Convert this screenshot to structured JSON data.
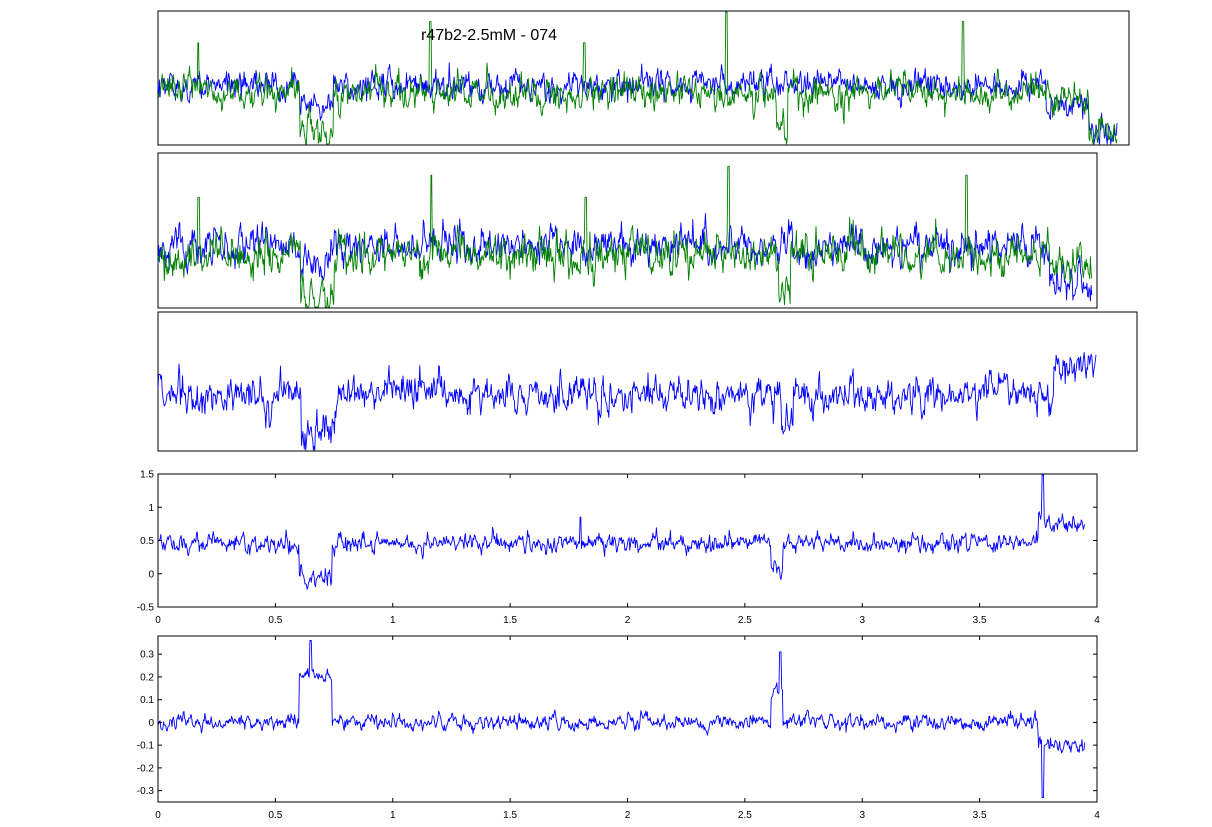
{
  "figure": {
    "title": "r47b2-2.5mM - 074"
  },
  "colors": {
    "blue_trace": "#0000ff",
    "green_trace": "#007f00",
    "axes": "#000000",
    "background": "#ffffff"
  },
  "chart_data": [
    {
      "type": "line",
      "panel": 1,
      "title": "r47b2-2.5mM - 074",
      "axes_visible": false,
      "x_range": [
        0,
        4.1
      ],
      "y_range": [
        -0.45,
        1.45
      ],
      "series": [
        {
          "color": "#0000ff",
          "baseline_level": 0.4,
          "noise_std": 0.09,
          "x_end": 4.05,
          "segments": [
            {
              "x_start": 0.0,
              "x_end": 0.6,
              "level": 0.4
            },
            {
              "x_start": 0.6,
              "x_end": 0.74,
              "level": 0.15
            },
            {
              "x_start": 0.74,
              "x_end": 3.75,
              "level": 0.4
            },
            {
              "x_start": 3.75,
              "x_end": 3.93,
              "level": 0.1
            },
            {
              "x_start": 3.93,
              "x_end": 4.05,
              "level": -0.3
            }
          ]
        },
        {
          "color": "#007f00",
          "baseline_level": 0.3,
          "noise_std": 0.1,
          "x_end": 4.05,
          "segments": [
            {
              "x_start": 0.0,
              "x_end": 0.6,
              "level": 0.3
            },
            {
              "x_start": 0.6,
              "x_end": 0.74,
              "level": -0.3
            },
            {
              "x_start": 0.74,
              "x_end": 2.61,
              "level": 0.3
            },
            {
              "x_start": 2.61,
              "x_end": 2.66,
              "level": -0.2
            },
            {
              "x_start": 2.66,
              "x_end": 3.75,
              "level": 0.3
            },
            {
              "x_start": 3.75,
              "x_end": 3.93,
              "level": 0.25
            },
            {
              "x_start": 3.93,
              "x_end": 4.05,
              "level": -0.3
            }
          ],
          "spikes": [
            {
              "x": 0.17,
              "y": 1.0
            },
            {
              "x": 1.15,
              "y": 1.3
            },
            {
              "x": 1.8,
              "y": 1.0
            },
            {
              "x": 2.4,
              "y": 1.45
            },
            {
              "x": 3.4,
              "y": 1.3
            }
          ]
        }
      ]
    },
    {
      "type": "line",
      "panel": 2,
      "axes_visible": false,
      "x_range": [
        0,
        3.95
      ],
      "y_range": [
        -0.3,
        1.45
      ],
      "series": [
        {
          "color": "#0000ff",
          "baseline_level": 0.4,
          "noise_std": 0.09,
          "x_end": 3.93,
          "segments": [
            {
              "x_start": 0.0,
              "x_end": 0.6,
              "level": 0.4
            },
            {
              "x_start": 0.6,
              "x_end": 0.74,
              "level": 0.15
            },
            {
              "x_start": 0.74,
              "x_end": 3.75,
              "level": 0.4
            },
            {
              "x_start": 3.75,
              "x_end": 3.93,
              "level": -0.05
            }
          ]
        },
        {
          "color": "#007f00",
          "baseline_level": 0.3,
          "noise_std": 0.1,
          "x_end": 3.93,
          "segments": [
            {
              "x_start": 0.0,
              "x_end": 0.6,
              "level": 0.3
            },
            {
              "x_start": 0.6,
              "x_end": 0.74,
              "level": -0.2
            },
            {
              "x_start": 0.74,
              "x_end": 2.61,
              "level": 0.3
            },
            {
              "x_start": 2.61,
              "x_end": 2.66,
              "level": -0.15
            },
            {
              "x_start": 2.66,
              "x_end": 3.75,
              "level": 0.3
            },
            {
              "x_start": 3.75,
              "x_end": 3.93,
              "level": 0.2
            }
          ],
          "spikes": [
            {
              "x": 0.17,
              "y": 0.95
            },
            {
              "x": 1.15,
              "y": 1.2
            },
            {
              "x": 1.8,
              "y": 0.95
            },
            {
              "x": 2.4,
              "y": 1.3
            },
            {
              "x": 3.4,
              "y": 1.2
            }
          ]
        }
      ]
    },
    {
      "type": "line",
      "panel": 3,
      "axes_visible": false,
      "x_range": [
        0,
        4.1
      ],
      "y_range": [
        -0.3,
        1.55
      ],
      "series": [
        {
          "color": "#0000ff",
          "baseline_level": 0.45,
          "noise_std": 0.1,
          "x_end": 3.93,
          "segments": [
            {
              "x_start": 0.0,
              "x_end": 0.6,
              "level": 0.45
            },
            {
              "x_start": 0.6,
              "x_end": 0.74,
              "level": -0.05
            },
            {
              "x_start": 0.74,
              "x_end": 2.61,
              "level": 0.45
            },
            {
              "x_start": 2.61,
              "x_end": 2.66,
              "level": 0.05
            },
            {
              "x_start": 2.66,
              "x_end": 3.75,
              "level": 0.45
            },
            {
              "x_start": 3.75,
              "x_end": 3.93,
              "level": 0.8
            }
          ]
        }
      ]
    },
    {
      "type": "line",
      "panel": 4,
      "axes_visible": true,
      "x_range": [
        0,
        4
      ],
      "y_range": [
        -0.5,
        1.5
      ],
      "x_ticks": [
        "0",
        "0.5",
        "1",
        "1.5",
        "2",
        "2.5",
        "3",
        "3.5",
        "4"
      ],
      "y_ticks": [
        "-0.5",
        "0",
        "0.5",
        "1",
        "1.5"
      ],
      "series": [
        {
          "color": "#0000ff",
          "baseline_level": 0.45,
          "noise_std": 0.06,
          "x_end": 3.95,
          "segments": [
            {
              "x_start": 0.0,
              "x_end": 0.6,
              "level": 0.45
            },
            {
              "x_start": 0.6,
              "x_end": 0.74,
              "level": -0.05
            },
            {
              "x_start": 0.74,
              "x_end": 2.61,
              "level": 0.45
            },
            {
              "x_start": 2.61,
              "x_end": 2.66,
              "level": 0.05
            },
            {
              "x_start": 2.66,
              "x_end": 3.75,
              "level": 0.45
            },
            {
              "x_start": 3.75,
              "x_end": 3.95,
              "level": 0.75
            }
          ],
          "spikes": [
            {
              "x": 3.77,
              "y": 1.5
            },
            {
              "x": 1.8,
              "y": 0.85
            }
          ]
        }
      ]
    },
    {
      "type": "line",
      "panel": 5,
      "axes_visible": true,
      "x_range": [
        0,
        4
      ],
      "y_range": [
        -0.35,
        0.38
      ],
      "x_ticks": [
        "0",
        "0.5",
        "1",
        "1.5",
        "2",
        "2.5",
        "3",
        "3.5",
        "4"
      ],
      "y_ticks": [
        "-0.3",
        "-0.2",
        "-0.1",
        "0",
        "0.1",
        "0.2",
        "0.3"
      ],
      "series": [
        {
          "color": "#0000ff",
          "baseline_level": 0.0,
          "noise_std": 0.015,
          "x_end": 3.95,
          "segments": [
            {
              "x_start": 0.0,
              "x_end": 0.6,
              "level": 0.0
            },
            {
              "x_start": 0.6,
              "x_end": 0.74,
              "level": 0.2
            },
            {
              "x_start": 0.74,
              "x_end": 2.61,
              "level": 0.0
            },
            {
              "x_start": 2.61,
              "x_end": 2.66,
              "level": 0.15
            },
            {
              "x_start": 2.66,
              "x_end": 3.75,
              "level": 0.0
            },
            {
              "x_start": 3.75,
              "x_end": 3.95,
              "level": -0.1
            }
          ],
          "spikes": [
            {
              "x": 0.65,
              "y": 0.36
            },
            {
              "x": 2.65,
              "y": 0.31
            },
            {
              "x": 3.77,
              "y": -0.33
            }
          ]
        }
      ]
    }
  ]
}
